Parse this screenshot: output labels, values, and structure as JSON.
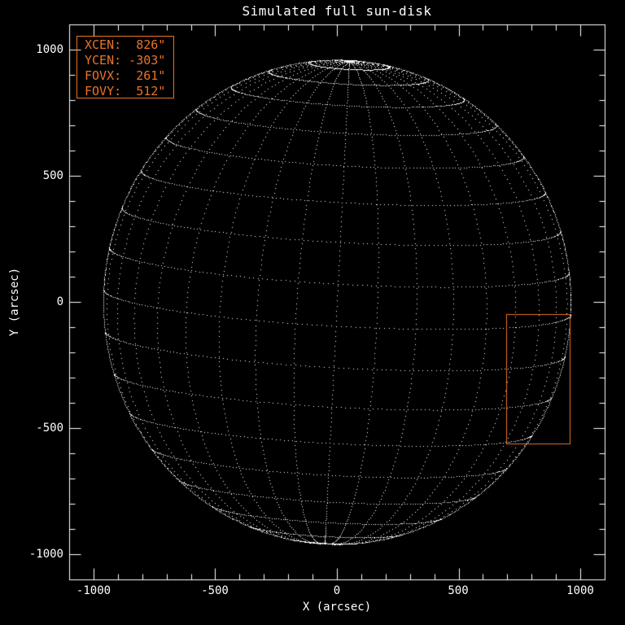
{
  "chart_data": {
    "type": "scatter",
    "title": "Simulated full sun-disk",
    "xlabel": "X (arcsec)",
    "ylabel": "Y (arcsec)",
    "xlim": [
      -1100,
      1100
    ],
    "ylim": [
      -1100,
      1100
    ],
    "x_ticks": [
      -1000,
      -500,
      0,
      500,
      1000
    ],
    "y_ticks": [
      -1000,
      -500,
      0,
      500,
      1000
    ],
    "x_tick_labels": [
      "-1000",
      "-500",
      "0",
      "500",
      "1000"
    ],
    "y_tick_labels": [
      "1000",
      "500",
      "0",
      "-500",
      "-1000"
    ],
    "minor_tick_step": 100,
    "grid": false,
    "legend_position": "top-left",
    "sun_disk": {
      "radius_arcsec": 960,
      "lat_step_deg": 10,
      "lon_step_deg": 10,
      "b0_tilt_deg": 5.7,
      "roll_deg": 3,
      "grid_sample_step_deg": 1.2,
      "limb_sample_step_deg": 0.4
    },
    "fov": {
      "xcen_arcsec": 826,
      "ycen_arcsec": -303,
      "fovx_arcsec": 261,
      "fovy_arcsec": 512
    }
  },
  "legend": {
    "lines": [
      "XCEN:  826\"",
      "YCEN: -303\"",
      "FOVX:  261\"",
      "FOVY:  512\""
    ],
    "values": {
      "xcen": "826\"",
      "ycen": "-303\"",
      "fovx": "261\"",
      "fovy": "512\""
    }
  },
  "colors": {
    "background": "#000000",
    "foreground": "#FFFFFF",
    "accent": "#E87428"
  }
}
